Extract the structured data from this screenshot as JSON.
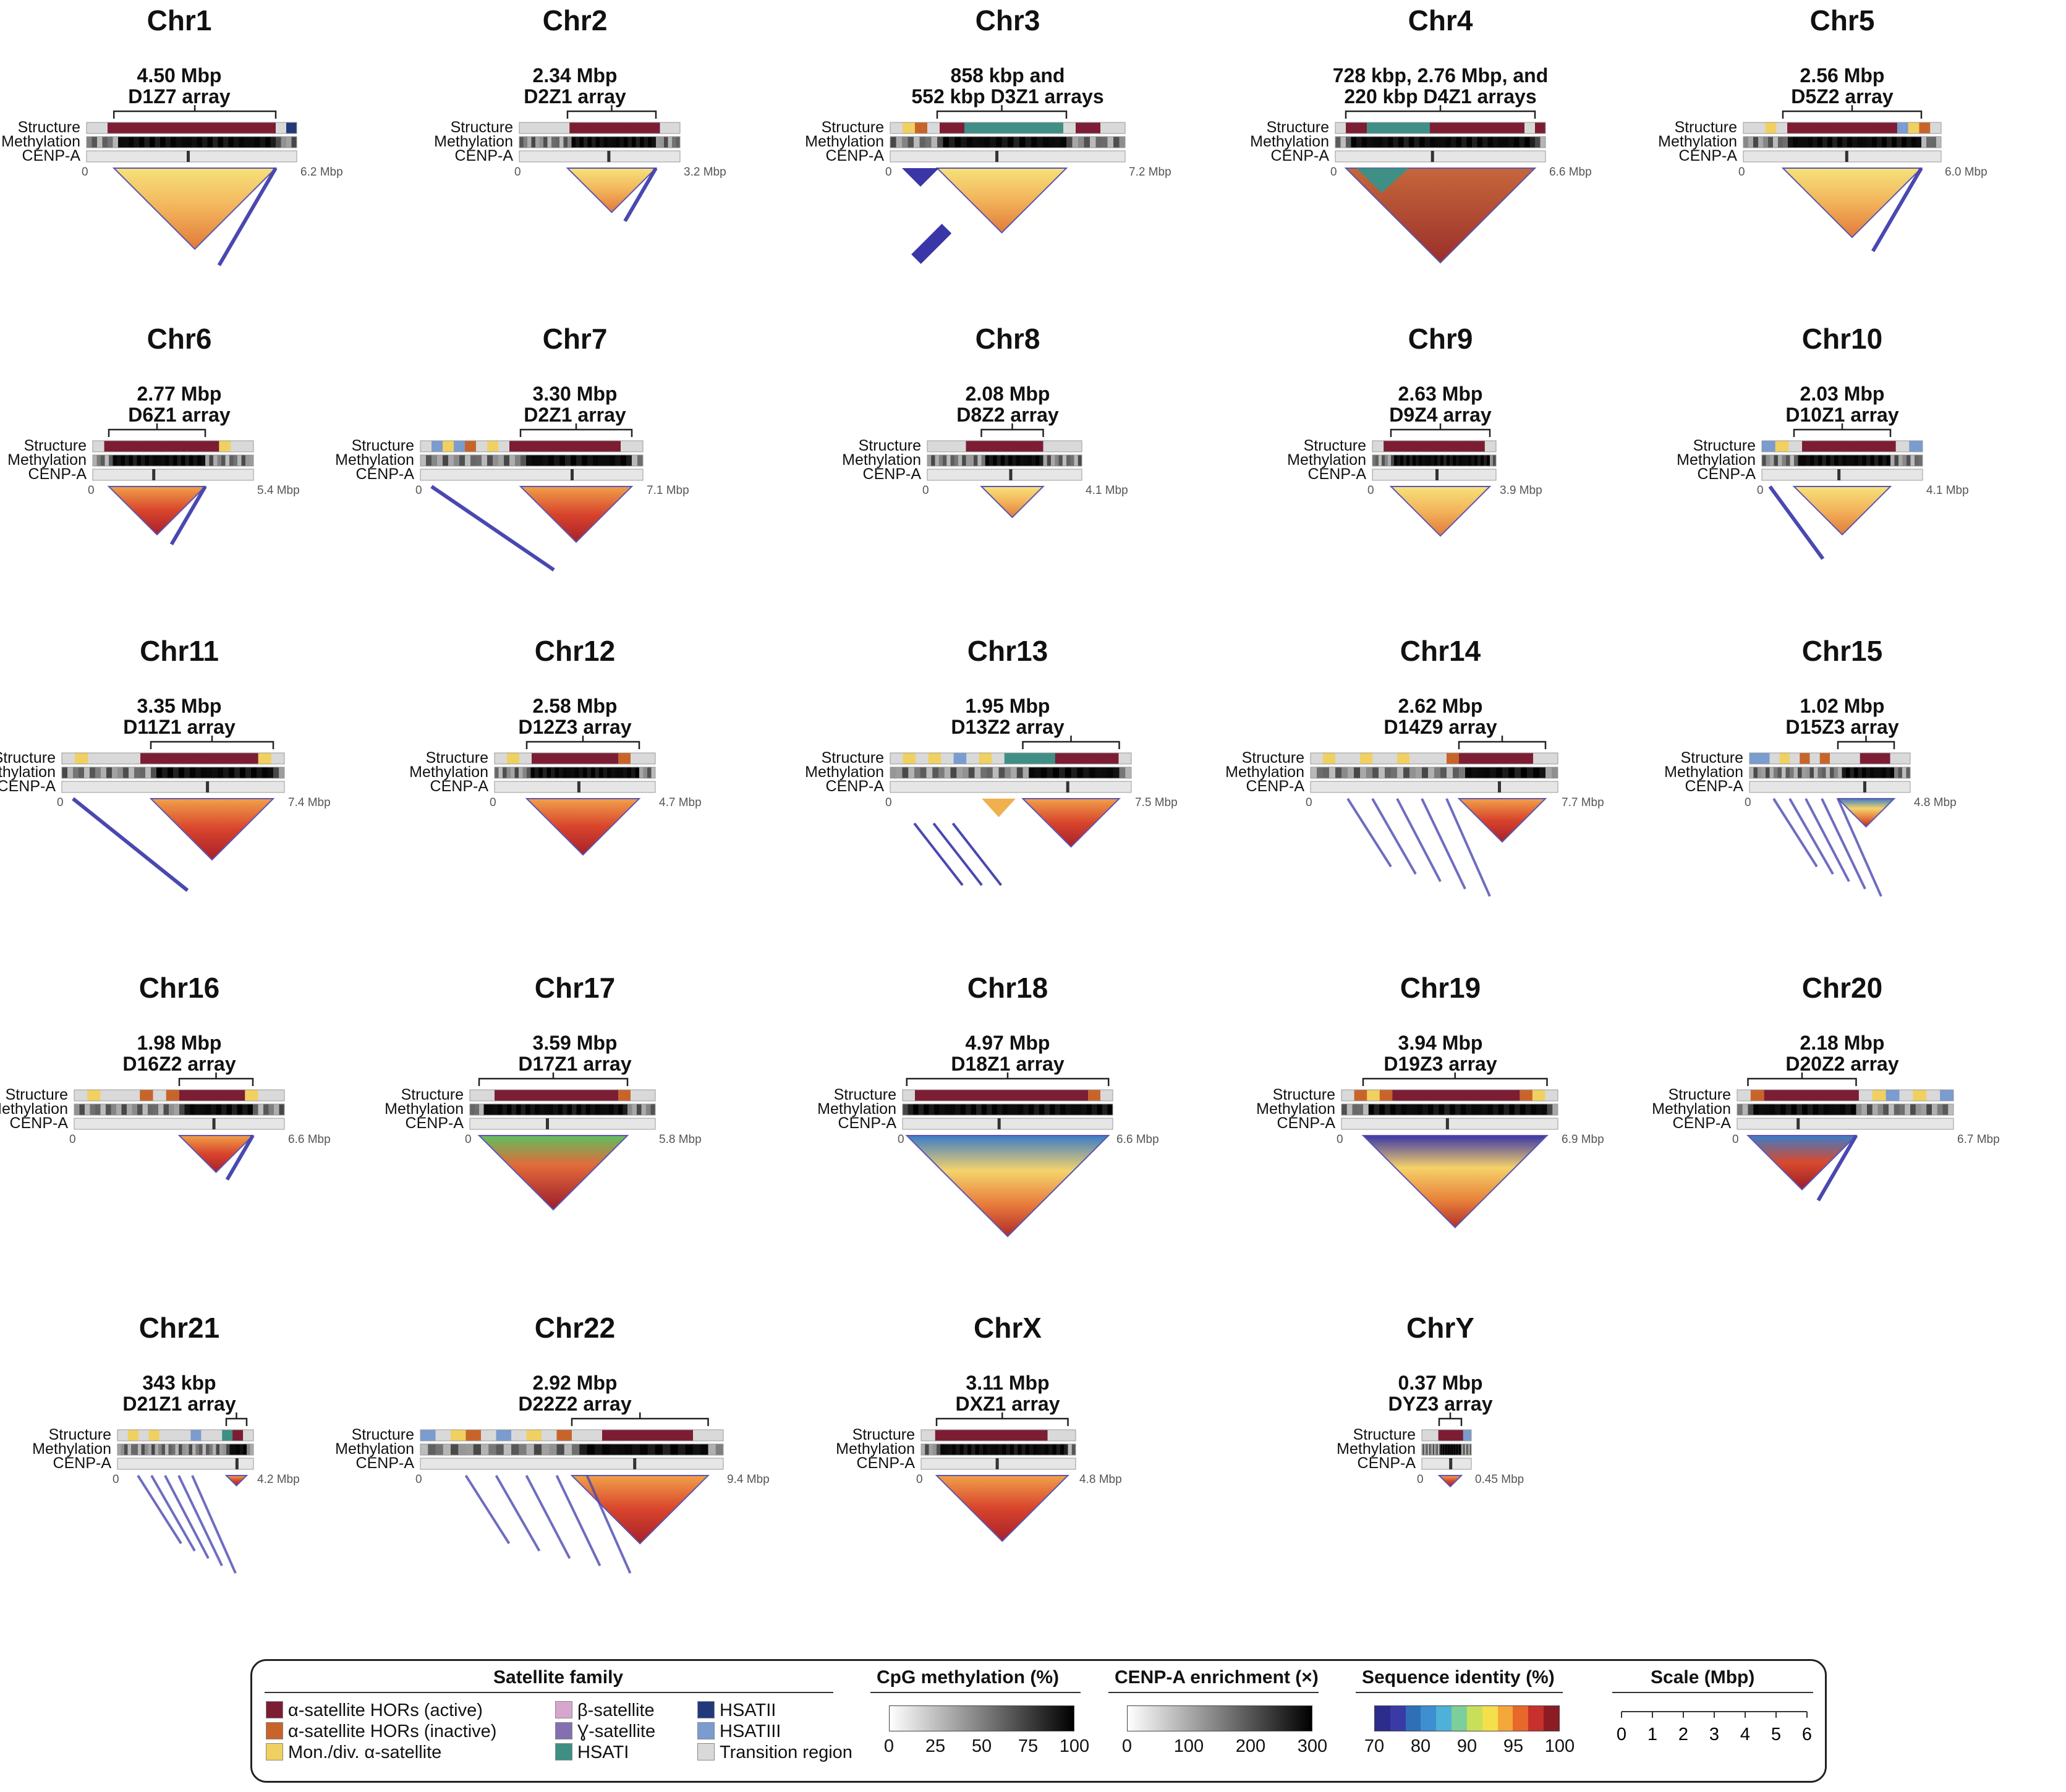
{
  "panels": [
    {
      "chr": "Chr1",
      "ann": "4.50 Mbp",
      "annName": "D1Z7 array",
      "end": "6.2 Mbp",
      "s0": 0.13,
      "s1": 0.9,
      "fill": "yellowwarm",
      "extra": "lineR",
      "colors": [
        "#d9d9d9",
        "#d9d9d9",
        "#7c1d34",
        "#7c1d34",
        "#7c1d34",
        "#7c1d34",
        "#7c1d34",
        "#7c1d34",
        "#7c1d34",
        "#7c1d34",
        "#7c1d34",
        "#7c1d34",
        "#7c1d34",
        "#7c1d34",
        "#7c1d34",
        "#7c1d34",
        "#7c1d34",
        "#7c1d34",
        "#d9d9d9",
        "#233a7a"
      ]
    },
    {
      "chr": "Chr2",
      "ann": "2.34 Mbp",
      "annName": "D2Z1 array",
      "end": "3.2 Mbp",
      "s0": 0.3,
      "s1": 0.85,
      "fill": "yellowwarm",
      "extra": "lineR",
      "colors": [
        "#d9d9d9",
        "#d9d9d9",
        "#d9d9d9",
        "#d9d9d9",
        "#d9d9d9",
        "#7c1d34",
        "#7c1d34",
        "#7c1d34",
        "#7c1d34",
        "#7c1d34",
        "#7c1d34",
        "#7c1d34",
        "#7c1d34",
        "#7c1d34",
        "#d9d9d9",
        "#d9d9d9"
      ]
    },
    {
      "chr": "Chr3",
      "ann": "858 kbp and",
      "annName": "552 kbp D3Z1 arrays",
      "end": "7.2 Mbp",
      "s0": 0.2,
      "s1": 0.75,
      "fill": "yellowwarm",
      "extra": "chr3",
      "colors": [
        "#d9d9d9",
        "#f0d060",
        "#c8642a",
        "#d9d9d9",
        "#7c1d34",
        "#7c1d34",
        "#3f8f85",
        "#3f8f85",
        "#3f8f85",
        "#3f8f85",
        "#3f8f85",
        "#3f8f85",
        "#3f8f85",
        "#3f8f85",
        "#d9d9d9",
        "#7c1d34",
        "#7c1d34",
        "#d9d9d9",
        "#d9d9d9"
      ]
    },
    {
      "chr": "Chr4",
      "ann": "728 kbp, 2.76 Mbp, and",
      "annName": "220 kbp D4Z1 arrays",
      "end": "6.6 Mbp",
      "s0": 0.05,
      "s1": 0.95,
      "fill": "redbrown",
      "extra": "chr4",
      "colors": [
        "#d9d9d9",
        "#7c1d34",
        "#7c1d34",
        "#3f8f85",
        "#3f8f85",
        "#3f8f85",
        "#3f8f85",
        "#3f8f85",
        "#3f8f85",
        "#7c1d34",
        "#7c1d34",
        "#7c1d34",
        "#7c1d34",
        "#7c1d34",
        "#7c1d34",
        "#7c1d34",
        "#7c1d34",
        "#7c1d34",
        "#d9d9d9",
        "#7c1d34"
      ]
    },
    {
      "chr": "Chr5",
      "ann": "2.56 Mbp",
      "annName": "D5Z2 array",
      "end": "6.0 Mbp",
      "s0": 0.2,
      "s1": 0.9,
      "fill": "yellowwarm",
      "extra": "lineR",
      "colors": [
        "#d9d9d9",
        "#d9d9d9",
        "#f0d060",
        "#d9d9d9",
        "#7c1d34",
        "#7c1d34",
        "#7c1d34",
        "#7c1d34",
        "#7c1d34",
        "#7c1d34",
        "#7c1d34",
        "#7c1d34",
        "#7c1d34",
        "#7c1d34",
        "#7a9ccf",
        "#f0d060",
        "#c8642a",
        "#d9d9d9"
      ]
    },
    {
      "chr": "Chr6",
      "ann": "2.77 Mbp",
      "annName": "D6Z1 array",
      "end": "5.4 Mbp",
      "s0": 0.1,
      "s1": 0.7,
      "fill": "redhot",
      "extra": "lineR",
      "colors": [
        "#d9d9d9",
        "#7c1d34",
        "#7c1d34",
        "#7c1d34",
        "#7c1d34",
        "#7c1d34",
        "#7c1d34",
        "#7c1d34",
        "#7c1d34",
        "#7c1d34",
        "#7c1d34",
        "#f0d060",
        "#d9d9d9",
        "#d9d9d9"
      ]
    },
    {
      "chr": "Chr7",
      "ann": "3.30 Mbp",
      "annName": "D2Z1 array",
      "end": "7.1 Mbp",
      "s0": 0.45,
      "s1": 0.95,
      "fill": "redhot",
      "extra": "lineL",
      "colors": [
        "#d9d9d9",
        "#7a9ccf",
        "#f0d060",
        "#7a9ccf",
        "#c8642a",
        "#d9d9d9",
        "#f0d060",
        "#d9d9d9",
        "#7c1d34",
        "#7c1d34",
        "#7c1d34",
        "#7c1d34",
        "#7c1d34",
        "#7c1d34",
        "#7c1d34",
        "#7c1d34",
        "#7c1d34",
        "#7c1d34",
        "#d9d9d9",
        "#d9d9d9"
      ]
    },
    {
      "chr": "Chr8",
      "ann": "2.08 Mbp",
      "annName": "D8Z2 array",
      "end": "4.1 Mbp",
      "s0": 0.35,
      "s1": 0.75,
      "fill": "yellowwarm",
      "extra": "none",
      "colors": [
        "#d9d9d9",
        "#d9d9d9",
        "#d9d9d9",
        "#7c1d34",
        "#7c1d34",
        "#7c1d34",
        "#7c1d34",
        "#7c1d34",
        "#7c1d34",
        "#d9d9d9",
        "#d9d9d9",
        "#d9d9d9"
      ]
    },
    {
      "chr": "Chr9",
      "ann": "2.63 Mbp",
      "annName": "D9Z4 array",
      "end": "3.9 Mbp",
      "s0": 0.15,
      "s1": 0.95,
      "fill": "yellowwarm",
      "extra": "none",
      "colors": [
        "#d9d9d9",
        "#7c1d34",
        "#7c1d34",
        "#7c1d34",
        "#7c1d34",
        "#7c1d34",
        "#7c1d34",
        "#7c1d34",
        "#7c1d34",
        "#7c1d34",
        "#d9d9d9"
      ]
    },
    {
      "chr": "Chr10",
      "ann": "2.03 Mbp",
      "annName": "D10Z1 array",
      "end": "4.1 Mbp",
      "s0": 0.2,
      "s1": 0.8,
      "fill": "yellowwarm",
      "extra": "lineL",
      "colors": [
        "#7a9ccf",
        "#f0d060",
        "#d9d9d9",
        "#7c1d34",
        "#7c1d34",
        "#7c1d34",
        "#7c1d34",
        "#7c1d34",
        "#7c1d34",
        "#7c1d34",
        "#d9d9d9",
        "#7a9ccf"
      ]
    },
    {
      "chr": "Chr11",
      "ann": "3.35 Mbp",
      "annName": "D11Z1 array",
      "end": "7.4 Mbp",
      "s0": 0.4,
      "s1": 0.95,
      "fill": "redhot",
      "extra": "lineL",
      "colors": [
        "#d9d9d9",
        "#f0d060",
        "#d9d9d9",
        "#d9d9d9",
        "#d9d9d9",
        "#d9d9d9",
        "#7c1d34",
        "#7c1d34",
        "#7c1d34",
        "#7c1d34",
        "#7c1d34",
        "#7c1d34",
        "#7c1d34",
        "#7c1d34",
        "#7c1d34",
        "#f0d060",
        "#d9d9d9"
      ]
    },
    {
      "chr": "Chr12",
      "ann": "2.58 Mbp",
      "annName": "D12Z3 array",
      "end": "4.7 Mbp",
      "s0": 0.2,
      "s1": 0.9,
      "fill": "redhot",
      "extra": "none",
      "colors": [
        "#d9d9d9",
        "#f0d060",
        "#d9d9d9",
        "#7c1d34",
        "#7c1d34",
        "#7c1d34",
        "#7c1d34",
        "#7c1d34",
        "#7c1d34",
        "#7c1d34",
        "#c8642a",
        "#d9d9d9",
        "#d9d9d9"
      ]
    },
    {
      "chr": "Chr13",
      "ann": "1.95 Mbp",
      "annName": "D13Z2 array",
      "end": "7.5 Mbp",
      "s0": 0.55,
      "s1": 0.95,
      "fill": "redhot",
      "extra": "chr13",
      "colors": [
        "#d9d9d9",
        "#f0d060",
        "#d9d9d9",
        "#f0d060",
        "#d9d9d9",
        "#7a9ccf",
        "#d9d9d9",
        "#f0d060",
        "#d9d9d9",
        "#3f8f85",
        "#3f8f85",
        "#3f8f85",
        "#3f8f85",
        "#7c1d34",
        "#7c1d34",
        "#7c1d34",
        "#7c1d34",
        "#7c1d34",
        "#d9d9d9"
      ]
    },
    {
      "chr": "Chr14",
      "ann": "2.62 Mbp",
      "annName": "D14Z9 array",
      "end": "7.7 Mbp",
      "s0": 0.6,
      "s1": 0.95,
      "fill": "redhot",
      "extra": "lines",
      "colors": [
        "#d9d9d9",
        "#f0d060",
        "#d9d9d9",
        "#d9d9d9",
        "#f0d060",
        "#d9d9d9",
        "#d9d9d9",
        "#f0d060",
        "#d9d9d9",
        "#d9d9d9",
        "#d9d9d9",
        "#c8642a",
        "#7c1d34",
        "#7c1d34",
        "#7c1d34",
        "#7c1d34",
        "#7c1d34",
        "#7c1d34",
        "#d9d9d9",
        "#d9d9d9"
      ]
    },
    {
      "chr": "Chr15",
      "ann": "1.02 Mbp",
      "annName": "D15Z3 array",
      "end": "4.8 Mbp",
      "s0": 0.55,
      "s1": 0.9,
      "fill": "bluewarm",
      "extra": "lines",
      "colors": [
        "#7a9ccf",
        "#7a9ccf",
        "#d9d9d9",
        "#f0d060",
        "#d9d9d9",
        "#c8642a",
        "#d9d9d9",
        "#c8642a",
        "#d9d9d9",
        "#d9d9d9",
        "#d9d9d9",
        "#7c1d34",
        "#7c1d34",
        "#7c1d34",
        "#d9d9d9",
        "#d9d9d9"
      ]
    },
    {
      "chr": "Chr16",
      "ann": "1.98 Mbp",
      "annName": "D16Z2 array",
      "end": "6.6 Mbp",
      "s0": 0.5,
      "s1": 0.85,
      "fill": "redhot",
      "extra": "lineR",
      "colors": [
        "#d9d9d9",
        "#f0d060",
        "#d9d9d9",
        "#d9d9d9",
        "#d9d9d9",
        "#c8642a",
        "#d9d9d9",
        "#c8642a",
        "#7c1d34",
        "#7c1d34",
        "#7c1d34",
        "#7c1d34",
        "#7c1d34",
        "#f0d060",
        "#d9d9d9",
        "#d9d9d9"
      ]
    },
    {
      "chr": "Chr17",
      "ann": "3.59 Mbp",
      "annName": "D17Z1 array",
      "end": "5.8 Mbp",
      "s0": 0.05,
      "s1": 0.85,
      "fill": "greenred",
      "extra": "none",
      "colors": [
        "#d9d9d9",
        "#d9d9d9",
        "#7c1d34",
        "#7c1d34",
        "#7c1d34",
        "#7c1d34",
        "#7c1d34",
        "#7c1d34",
        "#7c1d34",
        "#7c1d34",
        "#7c1d34",
        "#7c1d34",
        "#c8642a",
        "#d9d9d9",
        "#d9d9d9"
      ]
    },
    {
      "chr": "Chr18",
      "ann": "4.97 Mbp",
      "annName": "D18Z1 array",
      "end": "6.6 Mbp",
      "s0": 0.02,
      "s1": 0.98,
      "fill": "bluewarm",
      "extra": "none",
      "colors": [
        "#d9d9d9",
        "#7c1d34",
        "#7c1d34",
        "#7c1d34",
        "#7c1d34",
        "#7c1d34",
        "#7c1d34",
        "#7c1d34",
        "#7c1d34",
        "#7c1d34",
        "#7c1d34",
        "#7c1d34",
        "#7c1d34",
        "#7c1d34",
        "#7c1d34",
        "#c8642a",
        "#d9d9d9"
      ]
    },
    {
      "chr": "Chr19",
      "ann": "3.94 Mbp",
      "annName": "D19Z3 array",
      "end": "6.9 Mbp",
      "s0": 0.1,
      "s1": 0.95,
      "fill": "purplewarm",
      "extra": "none",
      "colors": [
        "#d9d9d9",
        "#c8642a",
        "#f0d060",
        "#c8642a",
        "#7c1d34",
        "#7c1d34",
        "#7c1d34",
        "#7c1d34",
        "#7c1d34",
        "#7c1d34",
        "#7c1d34",
        "#7c1d34",
        "#7c1d34",
        "#7c1d34",
        "#c8642a",
        "#f0d060",
        "#d9d9d9"
      ]
    },
    {
      "chr": "Chr20",
      "ann": "2.18 Mbp",
      "annName": "D20Z2 array",
      "end": "6.7 Mbp",
      "s0": 0.05,
      "s1": 0.55,
      "fill": "bluered",
      "extra": "lineR",
      "colors": [
        "#d9d9d9",
        "#c8642a",
        "#7c1d34",
        "#7c1d34",
        "#7c1d34",
        "#7c1d34",
        "#7c1d34",
        "#7c1d34",
        "#7c1d34",
        "#d9d9d9",
        "#f0d060",
        "#7a9ccf",
        "#d9d9d9",
        "#f0d060",
        "#d9d9d9",
        "#7a9ccf"
      ]
    },
    {
      "chr": "Chr21",
      "ann": "343 kbp",
      "annName": "D21Z1 array",
      "end": "4.2 Mbp",
      "s0": 0.8,
      "s1": 0.95,
      "fill": "redhot",
      "extra": "lines",
      "colors": [
        "#d9d9d9",
        "#f0d060",
        "#d9d9d9",
        "#f0d060",
        "#d9d9d9",
        "#d9d9d9",
        "#d9d9d9",
        "#7a9ccf",
        "#d9d9d9",
        "#d9d9d9",
        "#3f8f85",
        "#7c1d34",
        "#d9d9d9"
      ]
    },
    {
      "chr": "Chr22",
      "ann": "2.92 Mbp",
      "annName": "D22Z2 array",
      "end": "9.4 Mbp",
      "s0": 0.5,
      "s1": 0.95,
      "fill": "redhot",
      "extra": "lines",
      "colors": [
        "#7a9ccf",
        "#d9d9d9",
        "#f0d060",
        "#c8642a",
        "#d9d9d9",
        "#7a9ccf",
        "#d9d9d9",
        "#f0d060",
        "#d9d9d9",
        "#c8642a",
        "#d9d9d9",
        "#d9d9d9",
        "#7c1d34",
        "#7c1d34",
        "#7c1d34",
        "#7c1d34",
        "#7c1d34",
        "#7c1d34",
        "#d9d9d9",
        "#d9d9d9"
      ]
    },
    {
      "chr": "ChrX",
      "ann": "3.11 Mbp",
      "annName": "DXZ1 array",
      "end": "4.8 Mbp",
      "s0": 0.1,
      "s1": 0.95,
      "fill": "redhot",
      "extra": "none",
      "colors": [
        "#d9d9d9",
        "#7c1d34",
        "#7c1d34",
        "#7c1d34",
        "#7c1d34",
        "#7c1d34",
        "#7c1d34",
        "#7c1d34",
        "#7c1d34",
        "#d9d9d9",
        "#d9d9d9"
      ]
    },
    {
      "chr": "ChrY",
      "ann": "0.37 Mbp",
      "annName": "DYZ3 array",
      "end": "0.45 Mbp",
      "s0": 0.35,
      "s1": 0.8,
      "fill": "redhot",
      "extra": "none",
      "colors": [
        "#d9d9d9",
        "#d9d9d9",
        "#7c1d34",
        "#7c1d34",
        "#7c1d34",
        "#7a9ccf"
      ]
    }
  ],
  "labels": {
    "structure": "Structure",
    "methylation": "Methylation",
    "cenpa": "CENP-A",
    "zero": "0"
  },
  "legend": {
    "satellite_title": "Satellite family",
    "items": [
      {
        "label": "α-satellite HORs (active)",
        "color": "#7c1d34"
      },
      {
        "label": "α-satellite HORs (inactive)",
        "color": "#c8642a"
      },
      {
        "label": "Mon./div. α-satellite",
        "color": "#f0d060"
      },
      {
        "label": "β-satellite",
        "color": "#d7a6cf"
      },
      {
        "label": "Ɣ-satellite",
        "color": "#8470b0"
      },
      {
        "label": "HSATI",
        "color": "#3f8f85"
      },
      {
        "label": "HSATII",
        "color": "#233a7a"
      },
      {
        "label": "HSATIII",
        "color": "#7a9ccf"
      },
      {
        "label": "Transition region",
        "color": "#d9d9d9"
      }
    ],
    "cpg_title": "CpG methylation (%)",
    "cpg_ticks": [
      "0",
      "25",
      "50",
      "75",
      "100"
    ],
    "cenpa_title": "CENP-A enrichment (×)",
    "cenpa_ticks": [
      "0",
      "100",
      "200",
      "300"
    ],
    "identity_title": "Sequence identity (%)",
    "identity_ticks": [
      "70",
      "80",
      "90",
      "95",
      "100"
    ],
    "identity_colors": [
      "#2c2c8c",
      "#3a3aa6",
      "#2e6fb6",
      "#3d8fd0",
      "#4fb0d8",
      "#7ccf9a",
      "#c8df5a",
      "#f4e04a",
      "#f4a83a",
      "#e8682c",
      "#c8302c",
      "#8c1c24"
    ],
    "scale_title": "Scale (Mbp)",
    "scale_ticks": [
      "0",
      "1",
      "2",
      "3",
      "4",
      "5",
      "6"
    ]
  }
}
